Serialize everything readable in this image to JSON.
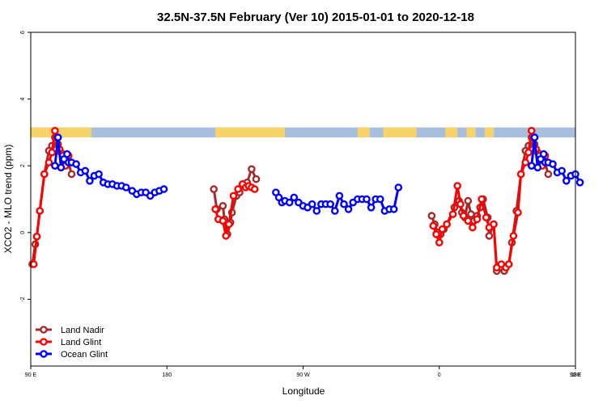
{
  "chart_data": {
    "type": "line",
    "title": "32.5N-37.5N February (Ver 10)   2015-01-01 to 2020-12-18",
    "xlabel": "Longitude",
    "ylabel": "XCO2 - MLO trend (ppm)",
    "xlim": [
      90,
      450
    ],
    "ylim": [
      -4,
      6
    ],
    "x_ticks": [
      {
        "value": 90,
        "label": "90 E"
      },
      {
        "value": 180,
        "label": "180"
      },
      {
        "value": 270,
        "label": "90 W"
      },
      {
        "value": 360,
        "label": "0"
      },
      {
        "value": 450,
        "label": "90 E"
      },
      {
        "value": 540,
        "label": "180"
      }
    ],
    "y_ticks": [
      {
        "value": -2,
        "label": "-2"
      },
      {
        "value": 0,
        "label": "0"
      },
      {
        "value": 2,
        "label": "2"
      },
      {
        "value": 4,
        "label": "4"
      },
      {
        "value": 6,
        "label": "6"
      }
    ],
    "land_ocean_band": {
      "y_range": [
        2.85,
        3.15
      ],
      "ocean_color": "#a7bedf",
      "land_color": "#f7d36a",
      "land_segments": [
        [
          90,
          130
        ],
        [
          212,
          258
        ],
        [
          306,
          314
        ],
        [
          323,
          345
        ],
        [
          364,
          372
        ],
        [
          378,
          384
        ],
        [
          390,
          396
        ],
        [
          450,
          490
        ]
      ]
    },
    "legend": {
      "position": "bottom-left"
    },
    "series": [
      {
        "name": "Land Nadir",
        "color": "#a52a2a",
        "points": [
          [
            91,
            -0.95
          ],
          [
            93,
            -0.35
          ],
          [
            94,
            -0.12
          ],
          [
            96,
            0.65
          ],
          [
            99,
            1.75
          ],
          [
            102,
            2.45
          ],
          [
            104,
            2.6
          ],
          [
            106,
            2.85
          ],
          [
            108,
            2.65
          ],
          [
            110,
            2.4
          ],
          [
            112,
            2.25
          ],
          [
            114,
            2.25
          ],
          [
            117,
            1.75
          ],
          [
            211,
            1.3
          ],
          [
            213,
            0.7
          ],
          [
            217,
            0.8
          ],
          [
            218,
            0.4
          ],
          [
            220,
            -0.05
          ],
          [
            222,
            0.3
          ],
          [
            223,
            0.6
          ],
          [
            226,
            1.1
          ],
          [
            228,
            1.2
          ],
          [
            230,
            1.45
          ],
          [
            233,
            1.5
          ],
          [
            236,
            1.9
          ],
          [
            239,
            1.6
          ],
          [
            355,
            0.5
          ],
          [
            357,
            0.25
          ],
          [
            359,
            0.0
          ],
          [
            361,
            -0.05
          ],
          [
            363,
            0.1
          ],
          [
            365,
            0.25
          ],
          [
            370,
            0.75
          ],
          [
            373,
            0.95
          ],
          [
            375,
            0.6
          ],
          [
            377,
            0.45
          ],
          [
            379,
            0.95
          ],
          [
            381,
            0.55
          ],
          [
            383,
            0.35
          ],
          [
            385,
            0.5
          ],
          [
            387,
            0.75
          ],
          [
            389,
            1.0
          ],
          [
            392,
            0.45
          ],
          [
            393,
            -0.1
          ],
          [
            396,
            0.25
          ],
          [
            398,
            -1.15
          ],
          [
            401,
            -1.05
          ],
          [
            403,
            -1.15
          ],
          [
            406,
            -0.95
          ],
          [
            408,
            -0.3
          ],
          [
            411,
            0.65
          ],
          [
            414,
            1.75
          ],
          [
            417,
            2.45
          ],
          [
            419,
            2.6
          ],
          [
            421,
            2.85
          ],
          [
            423,
            2.65
          ],
          [
            425,
            2.4
          ],
          [
            427,
            2.25
          ],
          [
            429,
            2.25
          ],
          [
            432,
            1.75
          ]
        ]
      },
      {
        "name": "Land Glint",
        "color": "#ff0000",
        "points": [
          [
            92,
            -0.95
          ],
          [
            94,
            -0.12
          ],
          [
            96,
            0.65
          ],
          [
            99,
            1.75
          ],
          [
            102,
            2.1
          ],
          [
            104,
            2.4
          ],
          [
            106,
            3.05
          ],
          [
            109,
            2.5
          ],
          [
            111,
            2.3
          ],
          [
            113,
            2.0
          ],
          [
            115,
            2.3
          ],
          [
            212,
            0.7
          ],
          [
            214,
            0.4
          ],
          [
            217,
            0.35
          ],
          [
            219,
            -0.1
          ],
          [
            221,
            0.25
          ],
          [
            224,
            1.1
          ],
          [
            227,
            1.3
          ],
          [
            230,
            1.45
          ],
          [
            232,
            1.35
          ],
          [
            234,
            1.4
          ],
          [
            236,
            1.35
          ],
          [
            238,
            1.3
          ],
          [
            356,
            0.2
          ],
          [
            358,
            -0.05
          ],
          [
            360,
            -0.3
          ],
          [
            362,
            0.1
          ],
          [
            365,
            0.25
          ],
          [
            369,
            0.55
          ],
          [
            372,
            1.4
          ],
          [
            374,
            0.85
          ],
          [
            376,
            0.5
          ],
          [
            379,
            0.35
          ],
          [
            382,
            0.15
          ],
          [
            385,
            0.4
          ],
          [
            388,
            1.0
          ],
          [
            391,
            0.45
          ],
          [
            393,
            0.15
          ],
          [
            396,
            0.25
          ],
          [
            398,
            -1.05
          ],
          [
            401,
            -0.95
          ],
          [
            404,
            -1.05
          ],
          [
            406,
            -0.95
          ],
          [
            409,
            -0.1
          ],
          [
            412,
            0.6
          ],
          [
            414,
            1.75
          ],
          [
            417,
            2.1
          ],
          [
            419,
            2.4
          ],
          [
            421,
            3.05
          ],
          [
            424,
            2.5
          ],
          [
            426,
            2.3
          ],
          [
            428,
            2.0
          ],
          [
            430,
            2.3
          ]
        ]
      },
      {
        "name": "Ocean Glint",
        "color": "#0000ff",
        "points": [
          [
            106,
            2.0
          ],
          [
            108,
            2.85
          ],
          [
            110,
            1.95
          ],
          [
            112,
            2.2
          ],
          [
            114,
            2.35
          ],
          [
            115,
            2.1
          ],
          [
            117,
            2.1
          ],
          [
            120,
            2.05
          ],
          [
            123,
            1.8
          ],
          [
            126,
            1.85
          ],
          [
            129,
            1.55
          ],
          [
            132,
            1.7
          ],
          [
            135,
            1.75
          ],
          [
            138,
            1.5
          ],
          [
            141,
            1.45
          ],
          [
            144,
            1.45
          ],
          [
            147,
            1.4
          ],
          [
            150,
            1.4
          ],
          [
            153,
            1.35
          ],
          [
            157,
            1.25
          ],
          [
            160,
            1.15
          ],
          [
            163,
            1.2
          ],
          [
            166,
            1.2
          ],
          [
            169,
            1.1
          ],
          [
            172,
            1.2
          ],
          [
            175,
            1.25
          ],
          [
            178,
            1.3
          ],
          [
            252,
            1.2
          ],
          [
            254,
            1.05
          ],
          [
            256,
            0.9
          ],
          [
            258,
            0.95
          ],
          [
            261,
            0.9
          ],
          [
            264,
            1.05
          ],
          [
            267,
            0.9
          ],
          [
            270,
            0.8
          ],
          [
            273,
            0.75
          ],
          [
            276,
            0.85
          ],
          [
            279,
            0.65
          ],
          [
            282,
            0.85
          ],
          [
            285,
            0.85
          ],
          [
            288,
            0.85
          ],
          [
            291,
            0.65
          ],
          [
            294,
            1.1
          ],
          [
            297,
            0.85
          ],
          [
            300,
            0.7
          ],
          [
            303,
            0.9
          ],
          [
            306,
            1.0
          ],
          [
            309,
            1.0
          ],
          [
            312,
            1.0
          ],
          [
            315,
            0.75
          ],
          [
            318,
            1.0
          ],
          [
            321,
            1.0
          ],
          [
            324,
            0.65
          ],
          [
            327,
            0.7
          ],
          [
            330,
            0.7
          ],
          [
            333,
            1.35
          ],
          [
            421,
            2.0
          ],
          [
            423,
            2.85
          ],
          [
            425,
            1.95
          ],
          [
            427,
            2.2
          ],
          [
            429,
            2.35
          ],
          [
            430,
            2.1
          ],
          [
            432,
            2.1
          ],
          [
            435,
            2.05
          ],
          [
            438,
            1.8
          ],
          [
            441,
            1.85
          ],
          [
            444,
            1.55
          ],
          [
            447,
            1.7
          ],
          [
            450,
            1.75
          ],
          [
            453,
            1.5
          ]
        ]
      }
    ]
  }
}
